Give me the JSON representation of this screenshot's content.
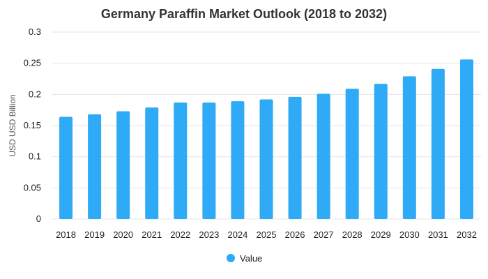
{
  "chart_data": {
    "type": "bar",
    "title": "Germany Paraffin Market Outlook (2018 to 2032)",
    "xlabel": "",
    "ylabel": "USD USD Billion",
    "categories": [
      "2018",
      "2019",
      "2020",
      "2021",
      "2022",
      "2023",
      "2024",
      "2025",
      "2026",
      "2027",
      "2028",
      "2029",
      "2030",
      "2031",
      "2032"
    ],
    "series": [
      {
        "name": "Value",
        "color": "#2eaaf7",
        "values": [
          0.164,
          0.168,
          0.173,
          0.179,
          0.187,
          0.187,
          0.189,
          0.192,
          0.196,
          0.201,
          0.209,
          0.217,
          0.229,
          0.241,
          0.256
        ]
      }
    ],
    "ylim": [
      0,
      0.3
    ],
    "yticks": [
      "0",
      "0.05",
      "0.1",
      "0.15",
      "0.2",
      "0.25",
      "0.3"
    ],
    "grid": true,
    "legend_position": "bottom-center"
  }
}
